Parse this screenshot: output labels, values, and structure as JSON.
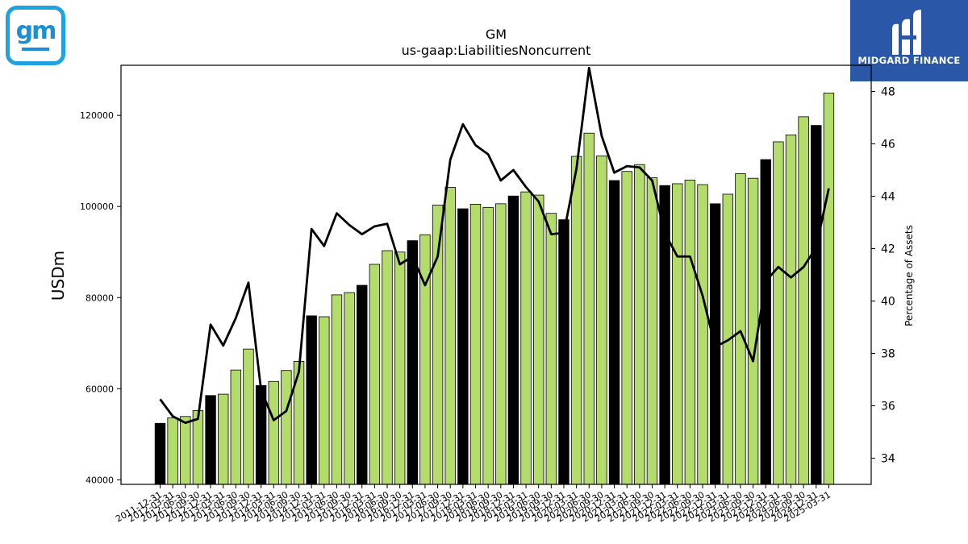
{
  "logos": {
    "company_logo_text": "gm",
    "brand_name": "MIDGARD FINANCE"
  },
  "chart_data": {
    "type": "bar",
    "title": "GM",
    "subtitle": "us-gaap:LiabilitiesNoncurrent",
    "ylabel": "USDm",
    "ylabel_right": "Percentage of Assets",
    "ylim": [
      39000,
      131000
    ],
    "ylim_right": [
      33,
      49
    ],
    "yticks": [
      40000,
      60000,
      80000,
      100000,
      120000
    ],
    "yticks_right": [
      34,
      36,
      38,
      40,
      42,
      44,
      46,
      48
    ],
    "colors": {
      "q4_bar": "#000000",
      "other_bar": "#b3dc6c",
      "bar_edge": "#000000",
      "line": "#000000"
    },
    "categories": [
      "2011-12-31",
      "2012-03-31",
      "2012-06-30",
      "2012-09-30",
      "2012-12-31",
      "2013-03-31",
      "2013-06-30",
      "2013-09-30",
      "2013-12-31",
      "2014-03-31",
      "2014-06-30",
      "2014-09-30",
      "2014-12-31",
      "2015-03-31",
      "2015-06-30",
      "2015-09-30",
      "2015-12-31",
      "2016-03-31",
      "2016-06-30",
      "2016-09-30",
      "2016-12-31",
      "2017-03-31",
      "2017-06-30",
      "2017-09-30",
      "2017-12-31",
      "2018-03-31",
      "2018-06-30",
      "2018-09-30",
      "2018-12-31",
      "2019-03-31",
      "2019-06-30",
      "2019-09-30",
      "2019-12-31",
      "2020-03-31",
      "2020-06-30",
      "2020-09-30",
      "2020-12-31",
      "2021-03-31",
      "2021-06-30",
      "2021-09-30",
      "2021-12-31",
      "2022-03-31",
      "2022-06-30",
      "2022-09-30",
      "2022-12-31",
      "2023-03-31",
      "2023-06-30",
      "2023-09-30",
      "2023-12-31",
      "2024-03-31",
      "2024-06-30",
      "2024-09-30",
      "2024-12-31",
      "2025-03-31"
    ],
    "series": [
      {
        "name": "",
        "kind": "bar",
        "axis": "left",
        "values": [
          52400,
          53600,
          53900,
          55200,
          58500,
          58800,
          64100,
          68700,
          60700,
          61600,
          64000,
          66000,
          76000,
          75800,
          80600,
          81100,
          82700,
          87300,
          90300,
          90000,
          92500,
          93800,
          100300,
          104200,
          99500,
          100500,
          99800,
          100600,
          102300,
          103200,
          102500,
          98500,
          97100,
          111000,
          116100,
          111100,
          105700,
          107700,
          109200,
          106300,
          104600,
          105000,
          105800,
          104800,
          100600,
          102700,
          107200,
          106200,
          110300,
          114200,
          115700,
          119700,
          117800,
          124900
        ]
      },
      {
        "name": "",
        "kind": "line",
        "axis": "right",
        "values": [
          36.25,
          35.6,
          35.35,
          35.5,
          39.1,
          38.3,
          39.35,
          40.7,
          36.6,
          35.45,
          35.8,
          37.3,
          42.75,
          42.1,
          43.35,
          42.9,
          42.55,
          42.85,
          42.95,
          41.4,
          41.7,
          40.6,
          41.7,
          45.4,
          46.75,
          45.95,
          45.6,
          44.6,
          45.0,
          44.35,
          43.8,
          42.55,
          42.6,
          45.05,
          48.9,
          46.3,
          44.9,
          45.15,
          45.1,
          44.6,
          42.6,
          41.7,
          41.7,
          40.2,
          38.25,
          38.5,
          38.85,
          37.7,
          40.75,
          41.3,
          40.9,
          41.3,
          42.05,
          44.3
        ]
      }
    ]
  }
}
